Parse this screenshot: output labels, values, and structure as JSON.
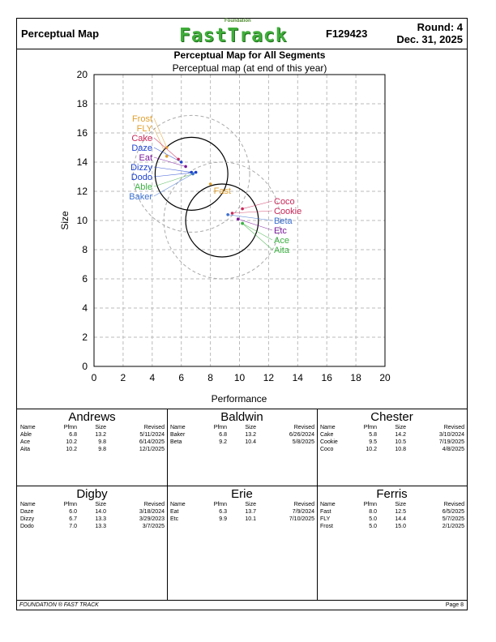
{
  "header": {
    "title": "Perceptual Map",
    "logo_small": "Foundation",
    "logo": "FastTrack",
    "code": "F129423",
    "round": "Round: 4",
    "date": "Dec. 31, 2025"
  },
  "chart_data": {
    "type": "scatter",
    "title": "Perceptual Map for All Segments",
    "subtitle": "Perceptual map (at end of this year)",
    "xlabel": "Performance",
    "ylabel": "Size",
    "xlim": [
      0,
      20
    ],
    "ylim": [
      0,
      20
    ],
    "xticks": [
      "0",
      "2",
      "4",
      "6",
      "8",
      "10",
      "12",
      "14",
      "16",
      "18",
      "20"
    ],
    "yticks": [
      "0",
      "2",
      "4",
      "6",
      "8",
      "10",
      "12",
      "14",
      "16",
      "18",
      "20"
    ],
    "grid": true,
    "segment_circles": [
      {
        "cx": 6.7,
        "cy": 13.2,
        "r": 2.5,
        "style": "solid"
      },
      {
        "cx": 8.8,
        "cy": 10.0,
        "r": 2.5,
        "style": "solid"
      },
      {
        "cx": 6.7,
        "cy": 13.2,
        "r": 4.0,
        "style": "dashed"
      },
      {
        "cx": 8.8,
        "cy": 10.0,
        "r": 4.0,
        "style": "dashed"
      }
    ],
    "series": [
      {
        "name": "Andrews",
        "color": "#3cb043",
        "points": [
          {
            "label": "Able",
            "x": 6.8,
            "y": 13.2
          },
          {
            "label": "Ace",
            "x": 10.2,
            "y": 9.8
          },
          {
            "label": "Aita",
            "x": 10.2,
            "y": 9.8
          }
        ]
      },
      {
        "name": "Baldwin",
        "color": "#3a6fd0",
        "points": [
          {
            "label": "Baker",
            "x": 6.8,
            "y": 13.2
          },
          {
            "label": "Beta",
            "x": 9.2,
            "y": 10.4
          }
        ]
      },
      {
        "name": "Chester",
        "color": "#c8285a",
        "points": [
          {
            "label": "Cake",
            "x": 5.8,
            "y": 14.2
          },
          {
            "label": "Cookie",
            "x": 9.5,
            "y": 10.5
          },
          {
            "label": "Coco",
            "x": 10.2,
            "y": 10.8
          }
        ]
      },
      {
        "name": "Digby",
        "color": "#1a3fd0",
        "points": [
          {
            "label": "Daze",
            "x": 6.0,
            "y": 14.0
          },
          {
            "label": "Dizzy",
            "x": 6.7,
            "y": 13.3
          },
          {
            "label": "Dodo",
            "x": 7.0,
            "y": 13.3
          }
        ]
      },
      {
        "name": "Erie",
        "color": "#7a1a9a",
        "points": [
          {
            "label": "Eat",
            "x": 6.3,
            "y": 13.7
          },
          {
            "label": "Etc",
            "x": 9.9,
            "y": 10.1
          }
        ]
      },
      {
        "name": "Ferris",
        "color": "#e0a030",
        "points": [
          {
            "label": "Fast",
            "x": 8.0,
            "y": 12.5
          },
          {
            "label": "FLY",
            "x": 5.0,
            "y": 14.4
          },
          {
            "label": "Frost",
            "x": 5.0,
            "y": 15.0
          }
        ]
      }
    ]
  },
  "table_headers": [
    "Name",
    "Pfmn",
    "Size",
    "Revised"
  ],
  "teams": [
    {
      "name": "Andrews",
      "rows": [
        [
          "Able",
          "6.8",
          "13.2",
          "5/11/2024"
        ],
        [
          "Ace",
          "10.2",
          "9.8",
          "6/14/2025"
        ],
        [
          "Aita",
          "10.2",
          "9.8",
          "12/1/2025"
        ]
      ]
    },
    {
      "name": "Baldwin",
      "rows": [
        [
          "Baker",
          "6.8",
          "13.2",
          "6/26/2024"
        ],
        [
          "Beta",
          "9.2",
          "10.4",
          "5/8/2025"
        ]
      ]
    },
    {
      "name": "Chester",
      "rows": [
        [
          "Cake",
          "5.8",
          "14.2",
          "3/10/2024"
        ],
        [
          "Cookie",
          "9.5",
          "10.5",
          "7/19/2025"
        ],
        [
          "Coco",
          "10.2",
          "10.8",
          "4/8/2025"
        ]
      ]
    },
    {
      "name": "Digby",
      "rows": [
        [
          "Daze",
          "6.0",
          "14.0",
          "3/18/2024"
        ],
        [
          "Dizzy",
          "6.7",
          "13.3",
          "3/29/2023"
        ],
        [
          "Dodo",
          "7.0",
          "13.3",
          "3/7/2025"
        ]
      ]
    },
    {
      "name": "Erie",
      "rows": [
        [
          "Eat",
          "6.3",
          "13.7",
          "7/9/2024"
        ],
        [
          "Etc",
          "9.9",
          "10.1",
          "7/10/2025"
        ]
      ]
    },
    {
      "name": "Ferris",
      "rows": [
        [
          "Fast",
          "8.0",
          "12.5",
          "6/5/2025"
        ],
        [
          "FLY",
          "5.0",
          "14.4",
          "5/7/2025"
        ],
        [
          "Frost",
          "5.0",
          "15.0",
          "2/1/2025"
        ]
      ]
    }
  ],
  "footer": {
    "left": "FOUNDATION ® FAST TRACK",
    "right": "Page 8"
  }
}
